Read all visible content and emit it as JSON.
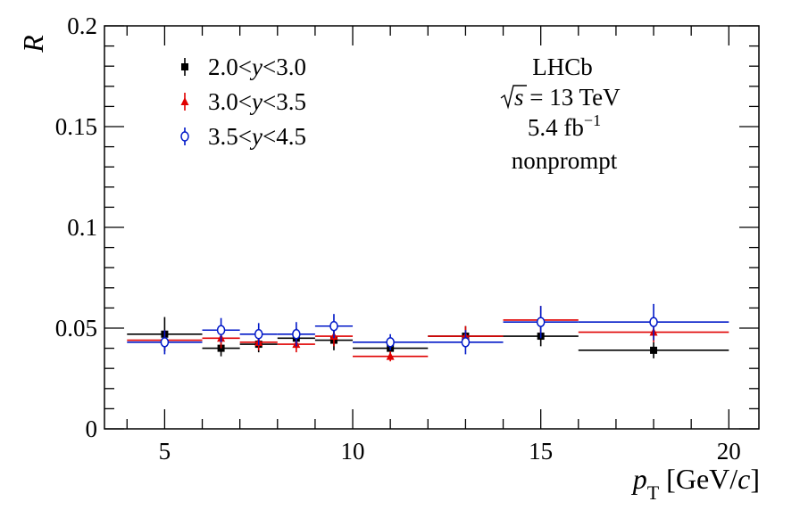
{
  "chart_data": {
    "type": "scatter",
    "title": "",
    "xlabel_var": "p",
    "xlabel_sub": "T",
    "xlabel_unit_open": " [GeV/",
    "xlabel_unit_c": "c",
    "xlabel_unit_close": "]",
    "ylabel": "R",
    "xlim": [
      3.4,
      20.8
    ],
    "ylim": [
      0,
      0.2
    ],
    "xticks": [
      5,
      10,
      15,
      20
    ],
    "xtick_labels": [
      "5",
      "10",
      "15",
      "20"
    ],
    "yticks": [
      0,
      0.05,
      0.1,
      0.15,
      0.2
    ],
    "ytick_labels": [
      "0",
      "0.05",
      "0.1",
      "0.15",
      "0.2"
    ],
    "grid": false,
    "legend_position": "top-left",
    "annotations": {
      "experiment": "LHCb",
      "energy_sqrt": "s",
      "energy_rest": " = 13 TeV",
      "lumi_value": "5.4 fb",
      "lumi_exp": "−1",
      "category": "nonprompt"
    },
    "series": [
      {
        "name": "2.0<y<3.0",
        "legend_pre": "2.0<",
        "legend_var": "y",
        "legend_post": "<3.0",
        "color": "#000000",
        "marker": "square",
        "points": [
          {
            "x": 5.0,
            "xlo": 4.0,
            "xhi": 6.0,
            "y": 0.047,
            "err": 0.0085
          },
          {
            "x": 6.5,
            "xlo": 6.0,
            "xhi": 7.0,
            "y": 0.04,
            "err": 0.004
          },
          {
            "x": 7.5,
            "xlo": 7.0,
            "xhi": 8.0,
            "y": 0.042,
            "err": 0.004
          },
          {
            "x": 8.5,
            "xlo": 8.0,
            "xhi": 9.0,
            "y": 0.045,
            "err": 0.005
          },
          {
            "x": 9.5,
            "xlo": 9.0,
            "xhi": 10.0,
            "y": 0.044,
            "err": 0.005
          },
          {
            "x": 11.0,
            "xlo": 10.0,
            "xhi": 12.0,
            "y": 0.04,
            "err": 0.004
          },
          {
            "x": 13.0,
            "xlo": 12.0,
            "xhi": 14.0,
            "y": 0.046,
            "err": 0.005
          },
          {
            "x": 15.0,
            "xlo": 14.0,
            "xhi": 16.0,
            "y": 0.046,
            "err": 0.005
          },
          {
            "x": 18.0,
            "xlo": 16.0,
            "xhi": 20.0,
            "y": 0.039,
            "err": 0.004
          }
        ]
      },
      {
        "name": "3.0<y<3.5",
        "legend_pre": "3.0<",
        "legend_var": "y",
        "legend_post": "<3.5",
        "color": "#e00000",
        "marker": "triangle",
        "points": [
          {
            "x": 5.0,
            "xlo": 4.0,
            "xhi": 6.0,
            "y": 0.044,
            "err": 0.005
          },
          {
            "x": 6.5,
            "xlo": 6.0,
            "xhi": 7.0,
            "y": 0.045,
            "err": 0.005
          },
          {
            "x": 7.5,
            "xlo": 7.0,
            "xhi": 8.0,
            "y": 0.043,
            "err": 0.004
          },
          {
            "x": 8.5,
            "xlo": 8.0,
            "xhi": 9.0,
            "y": 0.042,
            "err": 0.004
          },
          {
            "x": 9.5,
            "xlo": 9.0,
            "xhi": 10.0,
            "y": 0.046,
            "err": 0.005
          },
          {
            "x": 11.0,
            "xlo": 10.0,
            "xhi": 12.0,
            "y": 0.036,
            "err": 0.0025
          },
          {
            "x": 13.0,
            "xlo": 12.0,
            "xhi": 14.0,
            "y": 0.046,
            "err": 0.005
          },
          {
            "x": 15.0,
            "xlo": 14.0,
            "xhi": 16.0,
            "y": 0.054,
            "err": 0.007
          },
          {
            "x": 18.0,
            "xlo": 16.0,
            "xhi": 20.0,
            "y": 0.048,
            "err": 0.005
          }
        ]
      },
      {
        "name": "3.5<y<4.5",
        "legend_pre": "3.5<",
        "legend_var": "y",
        "legend_post": "<4.5",
        "color": "#0018c8",
        "marker": "open-circle",
        "points": [
          {
            "x": 5.0,
            "xlo": 4.0,
            "xhi": 6.0,
            "y": 0.043,
            "err": 0.006
          },
          {
            "x": 6.5,
            "xlo": 6.0,
            "xhi": 7.0,
            "y": 0.049,
            "err": 0.006
          },
          {
            "x": 7.5,
            "xlo": 7.0,
            "xhi": 8.0,
            "y": 0.047,
            "err": 0.0055
          },
          {
            "x": 8.5,
            "xlo": 8.0,
            "xhi": 9.0,
            "y": 0.047,
            "err": 0.006
          },
          {
            "x": 9.5,
            "xlo": 9.0,
            "xhi": 10.0,
            "y": 0.051,
            "err": 0.006
          },
          {
            "x": 11.0,
            "xlo": 10.0,
            "xhi": 12.0,
            "y": 0.043,
            "err": 0.004
          },
          {
            "x": 13.0,
            "xlo": 12.0,
            "xhi": 14.0,
            "y": 0.043,
            "err": 0.006
          },
          {
            "x": 15.0,
            "xlo": 14.0,
            "xhi": 16.0,
            "y": 0.053,
            "err": 0.008
          },
          {
            "x": 18.0,
            "xlo": 16.0,
            "xhi": 20.0,
            "y": 0.053,
            "err": 0.009
          }
        ]
      }
    ]
  }
}
